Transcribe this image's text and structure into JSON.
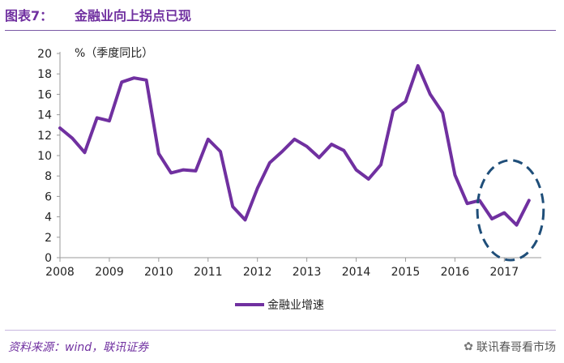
{
  "figure": {
    "label": "图表7：",
    "title": "金融业向上拐点已现",
    "source": "资料来源：wind，联讯证券",
    "watermark": "联讯春哥看市场",
    "watermark_icon": "wechat-icon"
  },
  "colors": {
    "accent": "#7030a0",
    "line": "#7030a0",
    "ellipse": "#1f4e79"
  },
  "chart_data": {
    "type": "line",
    "title": "",
    "ylabel": "%（季度同比）",
    "xlabel": "",
    "ylim": [
      0,
      20
    ],
    "yticks": [
      0,
      2,
      4,
      6,
      8,
      10,
      12,
      14,
      16,
      18,
      20
    ],
    "xticks": [
      "2008",
      "2009",
      "2010",
      "2011",
      "2012",
      "2013",
      "2014",
      "2015",
      "2016",
      "2017"
    ],
    "xlim": [
      2008.0,
      2017.75
    ],
    "legend": "bottom",
    "highlight": {
      "shape": "dashed-ellipse",
      "x_range": [
        2016.75,
        2017.5
      ],
      "y_range": [
        0,
        9.3
      ]
    },
    "series": [
      {
        "name": "金融业增速",
        "x": [
          2008.0,
          2008.25,
          2008.5,
          2008.75,
          2009.0,
          2009.25,
          2009.5,
          2009.75,
          2010.0,
          2010.25,
          2010.5,
          2010.75,
          2011.0,
          2011.25,
          2011.5,
          2011.75,
          2012.0,
          2012.25,
          2012.5,
          2012.75,
          2013.0,
          2013.25,
          2013.5,
          2013.75,
          2014.0,
          2014.25,
          2014.5,
          2014.75,
          2015.0,
          2015.25,
          2015.5,
          2015.75,
          2016.0,
          2016.25,
          2016.5,
          2016.75,
          2017.0,
          2017.25,
          2017.5
        ],
        "values": [
          12.7,
          11.7,
          10.3,
          13.7,
          13.4,
          17.2,
          17.6,
          17.4,
          10.2,
          8.3,
          8.6,
          8.5,
          11.6,
          10.4,
          5.0,
          3.7,
          6.8,
          9.3,
          10.4,
          11.6,
          10.9,
          9.8,
          11.1,
          10.5,
          8.6,
          7.7,
          9.1,
          14.4,
          15.3,
          18.8,
          16.0,
          14.2,
          8.1,
          5.3,
          5.6,
          3.8,
          4.4,
          3.2,
          5.6
        ]
      }
    ]
  }
}
